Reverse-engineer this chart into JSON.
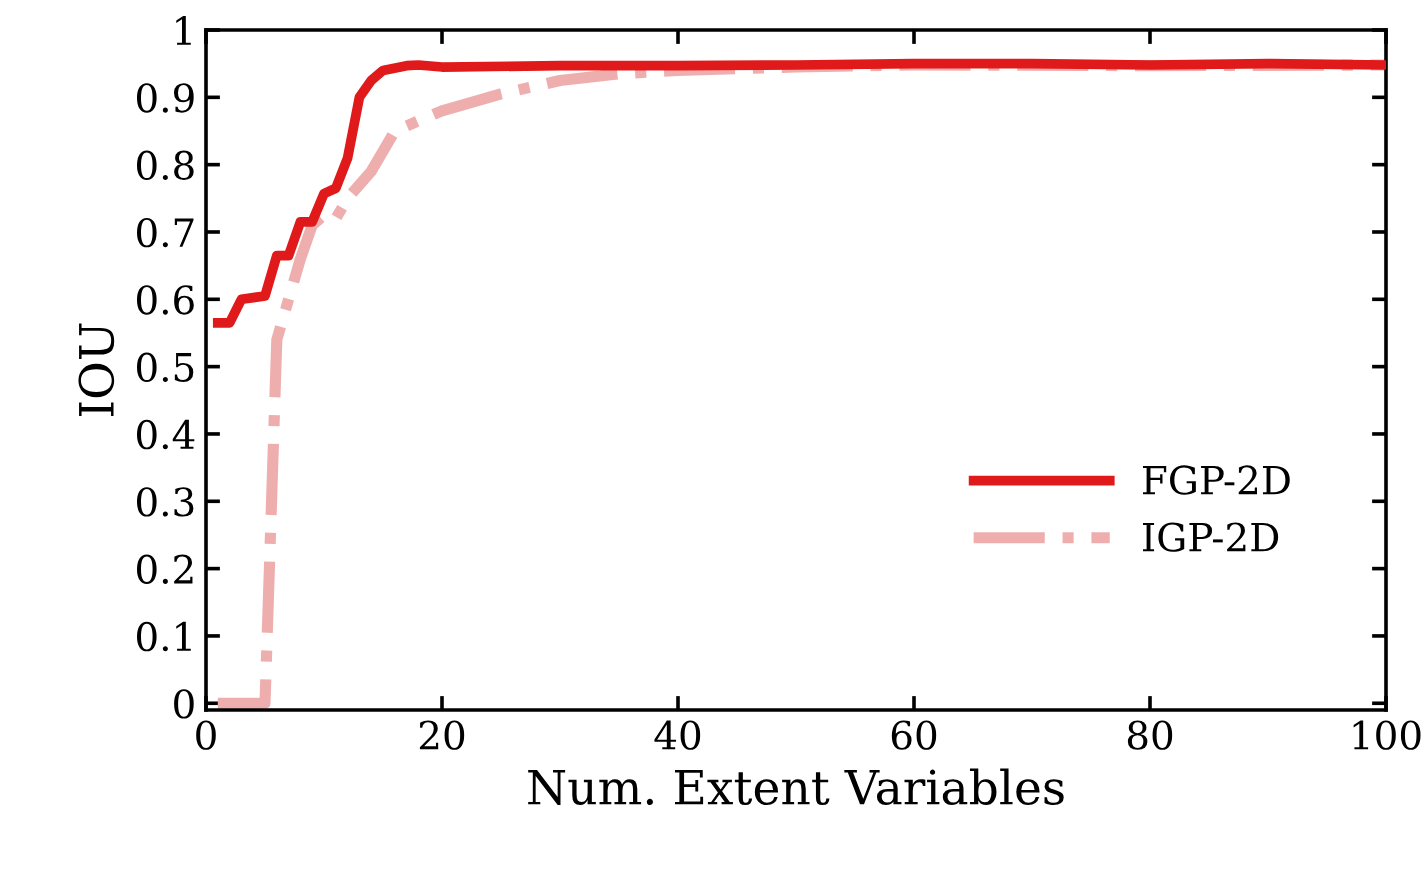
{
  "chart_data": {
    "type": "line",
    "xlabel": "Num. Extent Variables",
    "ylabel": "IOU",
    "xlim": [
      0,
      100
    ],
    "xticks": [
      0,
      20,
      40,
      60,
      80,
      100
    ],
    "ylim": [
      -0.01,
      1
    ],
    "yticks": [
      0,
      0.1,
      0.2,
      0.3,
      0.4,
      0.5,
      0.6,
      0.7,
      0.8,
      0.9,
      1
    ],
    "grid": false,
    "legend": "lower right",
    "series": [
      {
        "name": "FGP-2D",
        "color": "#e01a1a",
        "line_style": "solid",
        "x": [
          1,
          2,
          3,
          5,
          6,
          7,
          8,
          9,
          10,
          11,
          12,
          13,
          14,
          15,
          17,
          18,
          20,
          30,
          40,
          50,
          60,
          70,
          80,
          90,
          100
        ],
        "values": [
          0.565,
          0.565,
          0.6,
          0.605,
          0.665,
          0.665,
          0.715,
          0.715,
          0.757,
          0.765,
          0.81,
          0.9,
          0.925,
          0.94,
          0.947,
          0.948,
          0.945,
          0.947,
          0.947,
          0.948,
          0.95,
          0.95,
          0.948,
          0.95,
          0.948
        ]
      },
      {
        "name": "IGP-2D",
        "color": "#eeaeae",
        "line_style": "dashdot",
        "x": [
          1,
          5,
          6,
          7,
          8,
          9,
          10,
          11,
          12,
          13,
          14,
          15,
          16,
          18,
          20,
          25,
          30,
          35,
          40,
          50,
          60,
          80,
          100
        ],
        "values": [
          0,
          0,
          0.54,
          0.6,
          0.66,
          0.71,
          0.725,
          0.72,
          0.75,
          0.77,
          0.79,
          0.82,
          0.85,
          0.865,
          0.88,
          0.905,
          0.925,
          0.935,
          0.94,
          0.945,
          0.948,
          0.947,
          0.948
        ]
      }
    ]
  }
}
